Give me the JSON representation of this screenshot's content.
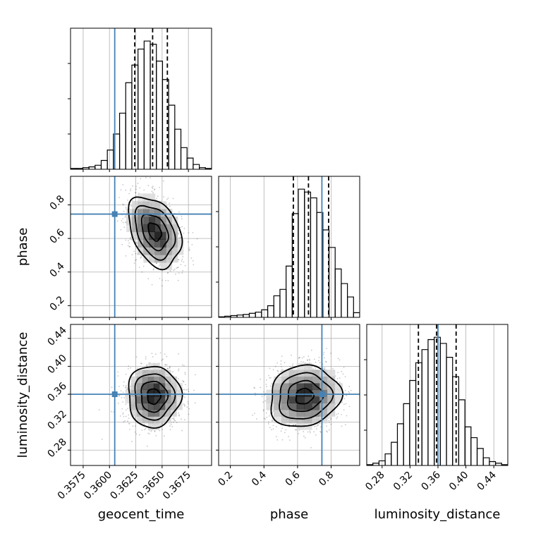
{
  "chart_data": {
    "type": "corner",
    "grid": true,
    "parameters": [
      "geocent_time",
      "phase",
      "luminosity_distance"
    ],
    "truths": {
      "geocent_time": 0.3605,
      "phase": 0.745,
      "luminosity_distance": 0.36
    },
    "truth_color": "#4682b4",
    "ranges": {
      "geocent_time": [
        0.3563,
        0.3697
      ],
      "phase": [
        0.13,
        0.97
      ],
      "luminosity_distance": [
        0.258,
        0.46
      ]
    },
    "ticks": {
      "geocent_time": [
        "0.3575",
        "0.3600",
        "0.3625",
        "0.3650",
        "0.3675"
      ],
      "phase": [
        "0.2",
        "0.4",
        "0.6",
        "0.8"
      ],
      "luminosity_distance": [
        "0.28",
        "0.32",
        "0.36",
        "0.40",
        "0.44"
      ]
    },
    "histograms": {
      "geocent_time": {
        "bin_range": [
          0.3563,
          0.3697
        ],
        "counts": [
          1,
          1,
          2,
          3,
          5,
          11,
          24,
          44,
          70,
          108,
          130,
          150,
          160,
          156,
          135,
          112,
          80,
          50,
          27,
          14,
          6,
          2,
          1
        ],
        "quantiles": [
          0.3624,
          0.3641,
          0.3655
        ]
      },
      "phase": {
        "bin_range": [
          0.13,
          0.97
        ],
        "counts": [
          1,
          2,
          3,
          4,
          5,
          7,
          9,
          13,
          20,
          37,
          48,
          88,
          178,
          220,
          215,
          205,
          180,
          150,
          120,
          83,
          58,
          35,
          8
        ],
        "quantiles": [
          0.575,
          0.665,
          0.785
        ]
      },
      "luminosity_distance": {
        "bin_range": [
          0.258,
          0.46
        ],
        "counts": [
          1,
          3,
          6,
          15,
          30,
          54,
          80,
          110,
          133,
          150,
          163,
          166,
          158,
          140,
          115,
          85,
          50,
          36,
          22,
          10,
          5,
          3,
          1
        ],
        "quantiles": [
          0.332,
          0.358,
          0.386
        ]
      }
    },
    "joint_2d": [
      {
        "x": "geocent_time",
        "y": "phase",
        "mean": [
          0.3643,
          0.64
        ],
        "sd": [
          0.00125,
          0.105
        ],
        "corr": -0.35
      },
      {
        "x": "geocent_time",
        "y": "luminosity_distance",
        "mean": [
          0.3642,
          0.357
        ],
        "sd": [
          0.00125,
          0.022
        ],
        "corr": 0.0
      },
      {
        "x": "phase",
        "y": "luminosity_distance",
        "mean": [
          0.64,
          0.357
        ],
        "sd": [
          0.105,
          0.022
        ],
        "corr": 0.1
      }
    ],
    "contour_levels_sigma": [
      0.5,
      1.0,
      1.5,
      2.0
    ]
  }
}
